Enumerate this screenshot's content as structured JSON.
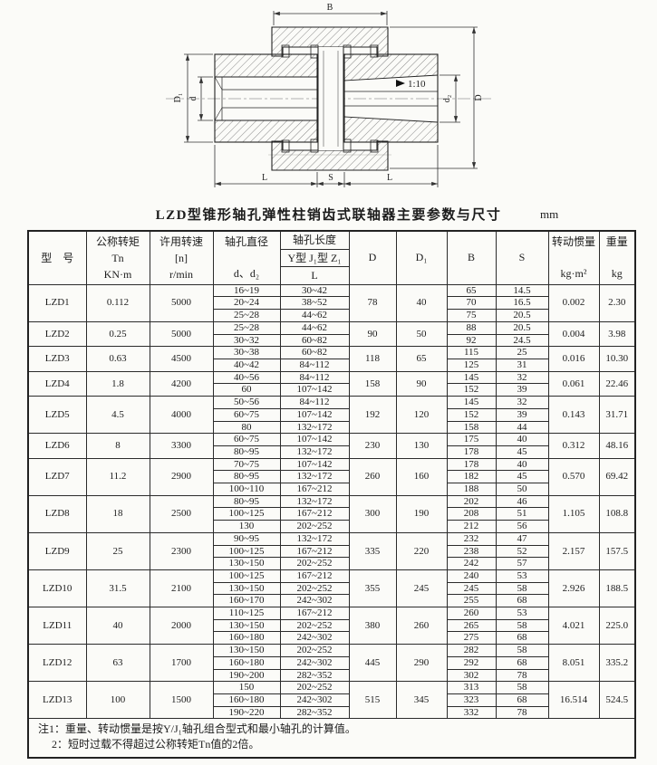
{
  "title": "LZD型锥形轴孔弹性柱销齿式联轴器主要参数与尺寸",
  "unit": "mm",
  "drawing": {
    "B": "B",
    "D": "D",
    "D1": "D₁",
    "d": "d",
    "d2": "d₂",
    "L": "L",
    "S": "S",
    "taper": "1:10"
  },
  "table": {
    "header": {
      "model": "型　号",
      "torque": [
        "公称转矩",
        "Tn",
        "KN·m"
      ],
      "speed": [
        "许用转速",
        "[n]",
        "r/min"
      ],
      "bore": [
        "轴孔直径",
        "d、d₂"
      ],
      "length": [
        "轴孔长度",
        "Y型 J₁型 Z₁",
        "L"
      ],
      "D": "D",
      "D1": "D₁",
      "B": "B",
      "S": "S",
      "inertia": [
        "转动惯量",
        "kg·m²"
      ],
      "weight": [
        "重量",
        "kg"
      ]
    },
    "models": [
      {
        "model": "LZD1",
        "torque": "0.112",
        "speed": "5000",
        "D": "78",
        "D1": "40",
        "inertia": "0.002",
        "weight": "2.30",
        "rows": [
          {
            "bore": "16~19",
            "len": "30~42",
            "B": "65",
            "S": "14.5"
          },
          {
            "bore": "20~24",
            "len": "38~52",
            "B": "70",
            "S": "16.5"
          },
          {
            "bore": "25~28",
            "len": "44~62",
            "B": "75",
            "S": "20.5"
          }
        ]
      },
      {
        "model": "LZD2",
        "torque": "0.25",
        "speed": "5000",
        "D": "90",
        "D1": "50",
        "inertia": "0.004",
        "weight": "3.98",
        "rows": [
          {
            "bore": "25~28",
            "len": "44~62",
            "B": "88",
            "S": "20.5"
          },
          {
            "bore": "30~32",
            "len": "60~82",
            "B": "92",
            "S": "24.5"
          }
        ]
      },
      {
        "model": "LZD3",
        "torque": "0.63",
        "speed": "4500",
        "D": "118",
        "D1": "65",
        "inertia": "0.016",
        "weight": "10.30",
        "rows": [
          {
            "bore": "30~38",
            "len": "60~82",
            "B": "115",
            "S": "25"
          },
          {
            "bore": "40~42",
            "len": "84~112",
            "B": "125",
            "S": "31"
          }
        ]
      },
      {
        "model": "LZD4",
        "torque": "1.8",
        "speed": "4200",
        "D": "158",
        "D1": "90",
        "inertia": "0.061",
        "weight": "22.46",
        "rows": [
          {
            "bore": "40~56",
            "len": "84~112",
            "B": "145",
            "S": "32"
          },
          {
            "bore": "60",
            "len": "107~142",
            "B": "152",
            "S": "39"
          }
        ]
      },
      {
        "model": "LZD5",
        "torque": "4.5",
        "speed": "4000",
        "D": "192",
        "D1": "120",
        "inertia": "0.143",
        "weight": "31.71",
        "rows": [
          {
            "bore": "50~56",
            "len": "84~112",
            "B": "145",
            "S": "32"
          },
          {
            "bore": "60~75",
            "len": "107~142",
            "B": "152",
            "S": "39"
          },
          {
            "bore": "80",
            "len": "132~172",
            "B": "158",
            "S": "44"
          }
        ]
      },
      {
        "model": "LZD6",
        "torque": "8",
        "speed": "3300",
        "D": "230",
        "D1": "130",
        "inertia": "0.312",
        "weight": "48.16",
        "rows": [
          {
            "bore": "60~75",
            "len": "107~142",
            "B": "175",
            "S": "40"
          },
          {
            "bore": "80~95",
            "len": "132~172",
            "B": "178",
            "S": "45"
          }
        ]
      },
      {
        "model": "LZD7",
        "torque": "11.2",
        "speed": "2900",
        "D": "260",
        "D1": "160",
        "inertia": "0.570",
        "weight": "69.42",
        "rows": [
          {
            "bore": "70~75",
            "len": "107~142",
            "B": "178",
            "S": "40"
          },
          {
            "bore": "80~95",
            "len": "132~172",
            "B": "182",
            "S": "45"
          },
          {
            "bore": "100~110",
            "len": "167~212",
            "B": "188",
            "S": "50"
          }
        ]
      },
      {
        "model": "LZD8",
        "torque": "18",
        "speed": "2500",
        "D": "300",
        "D1": "190",
        "inertia": "1.105",
        "weight": "108.8",
        "rows": [
          {
            "bore": "80~95",
            "len": "132~172",
            "B": "202",
            "S": "46"
          },
          {
            "bore": "100~125",
            "len": "167~212",
            "B": "208",
            "S": "51"
          },
          {
            "bore": "130",
            "len": "202~252",
            "B": "212",
            "S": "56"
          }
        ]
      },
      {
        "model": "LZD9",
        "torque": "25",
        "speed": "2300",
        "D": "335",
        "D1": "220",
        "inertia": "2.157",
        "weight": "157.5",
        "rows": [
          {
            "bore": "90~95",
            "len": "132~172",
            "B": "232",
            "S": "47"
          },
          {
            "bore": "100~125",
            "len": "167~212",
            "B": "238",
            "S": "52"
          },
          {
            "bore": "130~150",
            "len": "202~252",
            "B": "242",
            "S": "57"
          }
        ]
      },
      {
        "model": "LZD10",
        "torque": "31.5",
        "speed": "2100",
        "D": "355",
        "D1": "245",
        "inertia": "2.926",
        "weight": "188.5",
        "rows": [
          {
            "bore": "100~125",
            "len": "167~212",
            "B": "240",
            "S": "53"
          },
          {
            "bore": "130~150",
            "len": "202~252",
            "B": "245",
            "S": "58"
          },
          {
            "bore": "160~170",
            "len": "242~302",
            "B": "255",
            "S": "68"
          }
        ]
      },
      {
        "model": "LZD11",
        "torque": "40",
        "speed": "2000",
        "D": "380",
        "D1": "260",
        "inertia": "4.021",
        "weight": "225.0",
        "rows": [
          {
            "bore": "110~125",
            "len": "167~212",
            "B": "260",
            "S": "53"
          },
          {
            "bore": "130~150",
            "len": "202~252",
            "B": "265",
            "S": "58"
          },
          {
            "bore": "160~180",
            "len": "242~302",
            "B": "275",
            "S": "68"
          }
        ]
      },
      {
        "model": "LZD12",
        "torque": "63",
        "speed": "1700",
        "D": "445",
        "D1": "290",
        "inertia": "8.051",
        "weight": "335.2",
        "rows": [
          {
            "bore": "130~150",
            "len": "202~252",
            "B": "282",
            "S": "58"
          },
          {
            "bore": "160~180",
            "len": "242~302",
            "B": "292",
            "S": "68"
          },
          {
            "bore": "190~200",
            "len": "282~352",
            "B": "302",
            "S": "78"
          }
        ]
      },
      {
        "model": "LZD13",
        "torque": "100",
        "speed": "1500",
        "D": "515",
        "D1": "345",
        "inertia": "16.514",
        "weight": "524.5",
        "rows": [
          {
            "bore": "150",
            "len": "202~252",
            "B": "313",
            "S": "58"
          },
          {
            "bore": "160~180",
            "len": "242~302",
            "B": "323",
            "S": "68"
          },
          {
            "bore": "190~220",
            "len": "282~352",
            "B": "332",
            "S": "78"
          }
        ]
      }
    ]
  },
  "notes": [
    "注1：重量、转动惯量是按Y/J₁轴孔组合型式和最小轴孔的计算值。",
    "2：短时过载不得超过公称转矩Tn值的2倍。"
  ]
}
